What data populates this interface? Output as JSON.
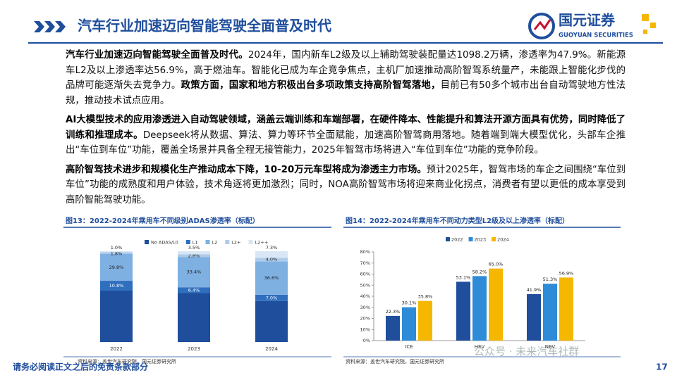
{
  "header": {
    "title": "汽车行业加速迈向智能驾驶全面普及时代",
    "logo_cn": "国元证券",
    "logo_en": "GUOYUAN SECURITIES"
  },
  "paragraphs": [
    [
      {
        "text": "汽车行业加速迈向智能驾驶全面普及时代。",
        "bold": true
      },
      {
        "text": "2024年，国内新车L2级及以上辅助驾驶装配量达1098.2万辆，渗透率为47.9%。新能源车L2及以上渗透率达56.9%，高于燃油车。智能化已成为车企竞争焦点，主机厂加速推动高阶智驾系统量产，未能跟上智能化步伐的品牌可能逐渐失去竞争力。",
        "bold": false
      },
      {
        "text": "政策方面，国家和地方积极出台多项政策支持高阶智驾落地，",
        "bold": true
      },
      {
        "text": "目前已有50多个城市出台自动驾驶地方性法规，推动技术试点应用。",
        "bold": false
      }
    ],
    [
      {
        "text": "AI大模型技术的应用渗透进入自动驾驶领域，涵盖云端训练和车端部署，在硬件降本、性能提升和算法开源方面具有优势，同时降低了训练和推理成本。",
        "bold": true
      },
      {
        "text": "Deepseek将从数据、算法、算力等环节全面赋能，加速高阶智驾商用落地。随着端到端大模型优化，头部车企推出“车位到车位”功能，覆盖全场景并具备全程无接管能力，2025年智驾市场将进入“车位到车位”功能的竞争阶段。",
        "bold": false
      }
    ],
    [
      {
        "text": "高阶智驾技术进步和规模化生产推动成本下降，10-20万元车型将成为渗透主力市场。",
        "bold": true
      },
      {
        "text": "预计2025年，智驾市场的车企之间围绕“车位到车位”功能的成熟度和用户体验，技术角逐将更加激烈；同时，NOA高阶智驾市场将迎来商业化拐点，消费者有望以更低的成本享受到高阶智能驾驶功能。",
        "bold": false
      }
    ]
  ],
  "chart_data": [
    {
      "type": "stacked-bar",
      "title": "图13：2022-2024年乘用车不同级别ADAS渗透率（标配）",
      "source": "资料来源：盖世汽车研究院，国元证券研究所",
      "categories": [
        "2022",
        "2023",
        "2024"
      ],
      "ylim": [
        0,
        100
      ],
      "series": [
        {
          "name": "No ADAS/L0",
          "color": "#1f4e9c",
          "values": [
            56.6,
            53.9,
            45.1
          ],
          "value_labels": [
            null,
            null,
            null
          ]
        },
        {
          "name": "L1",
          "color": "#2f6fbe",
          "values": [
            10.8,
            6.4,
            7.0
          ],
          "value_labels": [
            "10.8%",
            "6.4%",
            "7.0%"
          ]
        },
        {
          "name": "L2",
          "color": "#7fb0e2",
          "values": [
            29.8,
            33.4,
            36.6
          ],
          "value_labels": [
            "29.8%",
            "33.4%",
            "36.6%"
          ]
        },
        {
          "name": "L2+",
          "color": "#aecbea",
          "values": [
            1.8,
            2.8,
            4.0
          ],
          "value_labels": [
            "1.8%",
            "2.8%",
            "4.0%"
          ]
        },
        {
          "name": "L2++",
          "color": "#d8e6f5",
          "values": [
            1.0,
            3.5,
            7.3
          ],
          "value_labels": [
            "1.0%",
            "3.5%",
            "7.3%"
          ]
        }
      ]
    },
    {
      "type": "bar",
      "title": "图14：2022-2024年乘用车不同动力类型L2级及以上渗透率（标配）",
      "source": "资料来源：盖世汽车研究院，国元证券研究所",
      "categories": [
        "ICE",
        "HEV",
        "NEV"
      ],
      "ylim": [
        0,
        80
      ],
      "yticks": [
        {
          "value": 0,
          "label": "0%"
        },
        {
          "value": 10,
          "label": "10%"
        },
        {
          "value": 20,
          "label": "20%"
        },
        {
          "value": 30,
          "label": "30%"
        },
        {
          "value": 40,
          "label": "40%"
        },
        {
          "value": 50,
          "label": "50%"
        },
        {
          "value": 60,
          "label": "60%"
        },
        {
          "value": 70,
          "label": "70%"
        },
        {
          "value": 80,
          "label": "80%"
        }
      ],
      "series": [
        {
          "name": "2022",
          "color": "#1f4e9c",
          "values": [
            22.3,
            53.1,
            41.9
          ],
          "value_labels": [
            "22.3%",
            "53.1%",
            "41.9%"
          ]
        },
        {
          "name": "2023",
          "color": "#2e8bd8",
          "values": [
            30.1,
            58.2,
            51.3
          ],
          "value_labels": [
            "30.1%",
            "58.2%",
            "51.3%"
          ]
        },
        {
          "name": "2024",
          "color": "#f5b700",
          "values": [
            35.8,
            65.0,
            56.9
          ],
          "value_labels": [
            "35.8%",
            "65.0%",
            "56.9%"
          ]
        }
      ]
    }
  ],
  "watermark": "公众号 · 未来汽车社群",
  "footer": {
    "disclaimer": "请务必阅读正文之后的免责条款部分",
    "page": "17"
  }
}
